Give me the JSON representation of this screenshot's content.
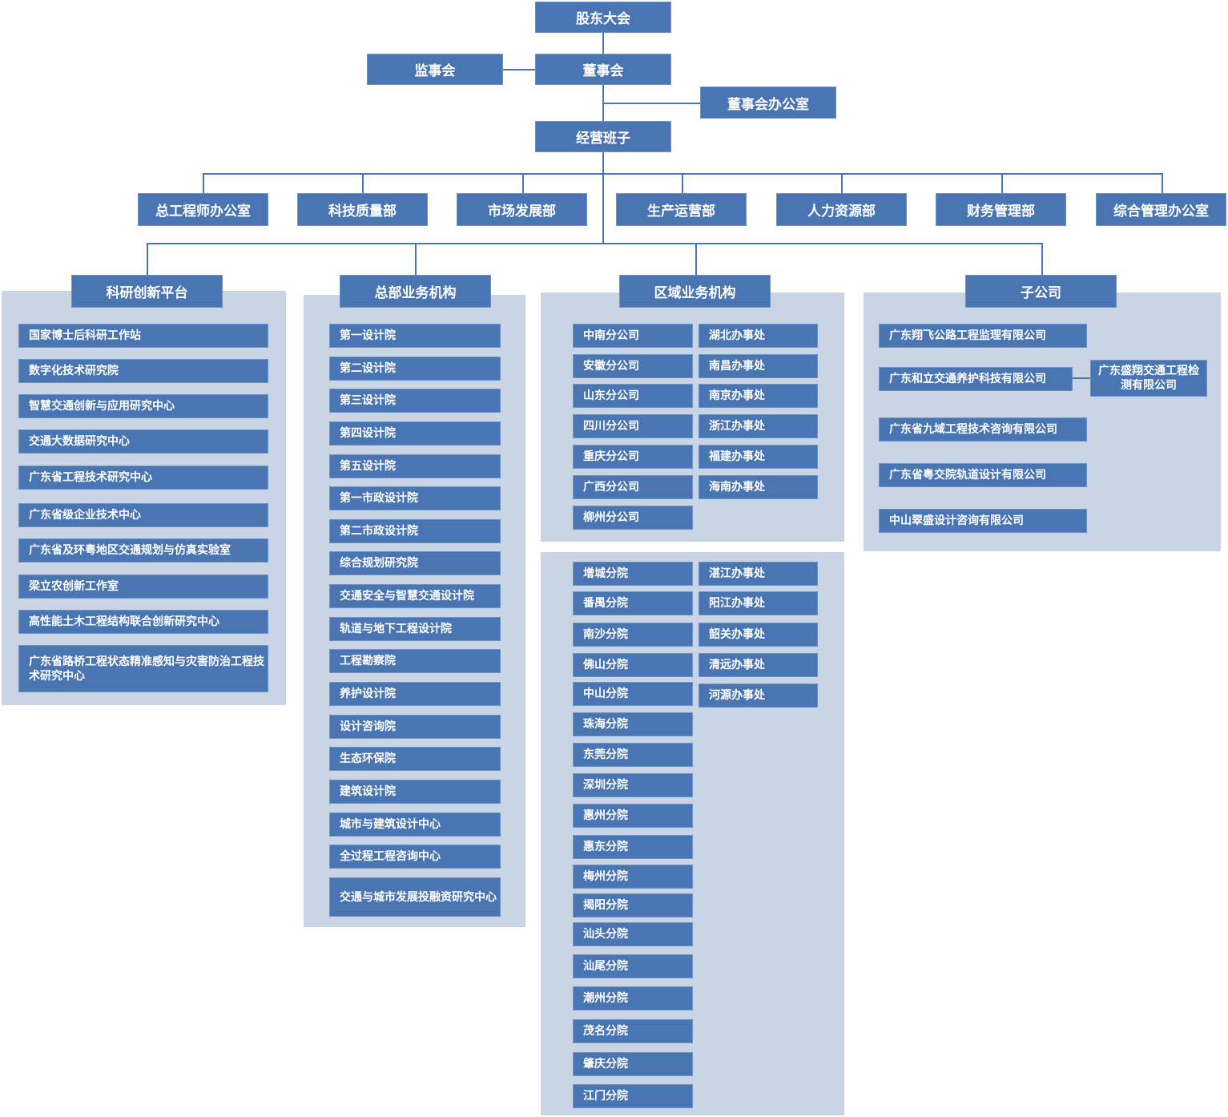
{
  "colors": {
    "box": "#4a75b3",
    "panel": "#c9d5e5",
    "line": "#4a75b3",
    "text": "#ffffff"
  },
  "top": {
    "shareholders": "股东大会",
    "supervisors": "监事会",
    "board": "董事会",
    "board_office": "董事会办公室",
    "management": "经营班子"
  },
  "departments": [
    "总工程师办公室",
    "科技质量部",
    "市场发展部",
    "生产运营部",
    "人力资源部",
    "财务管理部",
    "综合管理办公室"
  ],
  "groups": {
    "research": {
      "title": "科研创新平台",
      "items": [
        "国家博士后科研工作站",
        "数字化技术研究院",
        "智慧交通创新与应用研究中心",
        "交通大数据研究中心",
        "广东省工程技术研究中心",
        "广东省级企业技术中心",
        "广东省及环粤地区交通规划与仿真实验室",
        "梁立农创新工作室",
        "高性能土木工程结构联合创新研究中心",
        "广东省路桥工程状态精准感知与灾害防治工程技术研究中心"
      ]
    },
    "hq": {
      "title": "总部业务机构",
      "items": [
        "第一设计院",
        "第二设计院",
        "第三设计院",
        "第四设计院",
        "第五设计院",
        "第一市政设计院",
        "第二市政设计院",
        "综合规划研究院",
        "交通安全与智慧交通设计院",
        "轨道与地下工程设计院",
        "工程勘察院",
        "养护设计院",
        "设计咨询院",
        "生态环保院",
        "建筑设计院",
        "城市与建筑设计中心",
        "全过程工程咨询中心",
        "交通与城市发展投融资研究中心"
      ]
    },
    "regional": {
      "title": "区域业务机构",
      "branches": [
        "中南分公司",
        "安徽分公司",
        "山东分公司",
        "四川分公司",
        "重庆分公司",
        "广西分公司",
        "柳州分公司"
      ],
      "offices": [
        "湖北办事处",
        "南昌办事处",
        "南京办事处",
        "浙江办事处",
        "福建办事处",
        "海南办事处"
      ],
      "sub_branches": [
        "增城分院",
        "番禺分院",
        "南沙分院",
        "佛山分院",
        "中山分院",
        "珠海分院",
        "东莞分院",
        "深圳分院",
        "惠州分院",
        "惠东分院",
        "梅州分院",
        "揭阳分院",
        "汕头分院",
        "汕尾分院",
        "潮州分院",
        "茂名分院",
        "肇庆分院",
        "江门分院"
      ],
      "local_offices": [
        "湛江办事处",
        "阳江办事处",
        "韶关办事处",
        "清远办事处",
        "河源办事处"
      ]
    },
    "subsidiaries": {
      "title": "子公司",
      "items": [
        "广东翔飞公路工程监理有限公司",
        "广东和立交通养护科技有限公司",
        "广东省九域工程技术咨询有限公司",
        "广东省粤交院轨道设计有限公司",
        "中山翠盛设计咨询有限公司"
      ],
      "child": "广东盛翔交通工程检测有限公司"
    }
  }
}
